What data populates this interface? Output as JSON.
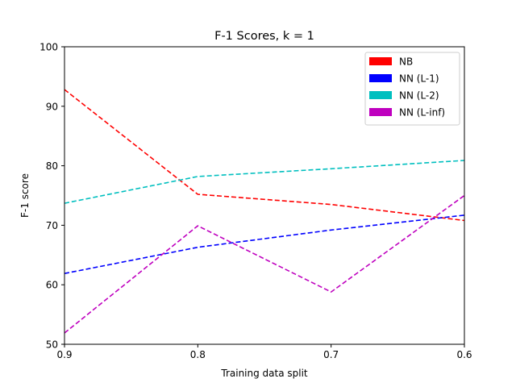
{
  "chart_data": {
    "type": "line",
    "title": "F-1 Scores, k = 1",
    "xlabel": "Training data split",
    "ylabel": "F-1 score",
    "x": [
      0.9,
      0.8,
      0.7,
      0.6
    ],
    "x_tick_labels": [
      "0.9",
      "0.8",
      "0.7",
      "0.6"
    ],
    "x_axis_reversed": true,
    "xlim": [
      0.9,
      0.6
    ],
    "ylim": [
      50,
      100
    ],
    "y_ticks": [
      50,
      60,
      70,
      80,
      90,
      100
    ],
    "y_tick_labels": [
      "50",
      "60",
      "70",
      "80",
      "90",
      "100"
    ],
    "grid": false,
    "legend_position": "top-right",
    "line_style": "dashed",
    "series": [
      {
        "name": "NB",
        "color": "#ff0000",
        "values": [
          92.8,
          75.2,
          73.5,
          70.8
        ]
      },
      {
        "name": "NN (L-1)",
        "color": "#0000ff",
        "values": [
          61.9,
          66.3,
          69.2,
          71.7
        ]
      },
      {
        "name": "NN (L-2)",
        "color": "#00bfbf",
        "values": [
          73.7,
          78.2,
          79.5,
          80.9
        ]
      },
      {
        "name": "NN (L-inf)",
        "color": "#bf00bf",
        "values": [
          51.9,
          69.9,
          58.8,
          75.0
        ]
      }
    ]
  }
}
